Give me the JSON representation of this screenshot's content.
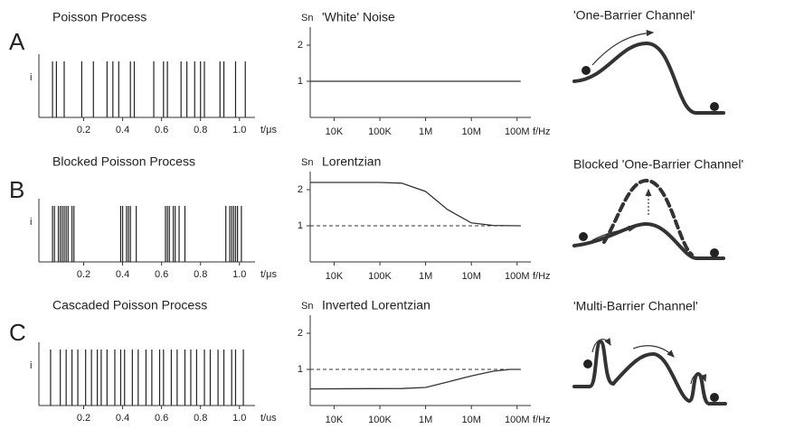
{
  "chart_data": [
    {
      "type": "event",
      "title": "Poisson Process",
      "ylabel": "i",
      "xlabel": "t/μs",
      "color": "#222",
      "x": [
        0.04,
        0.06,
        0.1,
        0.19,
        0.25,
        0.32,
        0.35,
        0.38,
        0.44,
        0.46,
        0.56,
        0.61,
        0.63,
        0.7,
        0.73,
        0.77,
        0.8,
        0.82,
        0.9,
        0.92,
        0.98,
        1.03
      ],
      "xlim": [
        -0.03,
        1.08
      ],
      "xticks": [
        0.2,
        0.4,
        0.6,
        0.8,
        {
          "value": 1,
          "label": "1.0"
        }
      ]
    },
    {
      "type": "line",
      "title": "'White' Noise",
      "ylabel": "Sn",
      "xlabel": "f/Hz",
      "log_x": true,
      "color": "#333",
      "x": [
        3000,
        120000000
      ],
      "values": [
        1,
        1
      ],
      "xlim": [
        3000,
        200000000
      ],
      "xticks": [
        {
          "value": 10000,
          "label": "10K"
        },
        {
          "value": 100000,
          "label": "100K"
        },
        {
          "value": 1000000,
          "label": "1M"
        },
        {
          "value": 10000000,
          "label": "10M"
        },
        {
          "value": 100000000,
          "label": "100M"
        }
      ],
      "ylim": [
        0,
        2.5
      ],
      "yticks": [
        1,
        2
      ]
    },
    {
      "type": "event",
      "title": "Blocked Poisson Process",
      "ylabel": "i",
      "xlabel": "t/μs",
      "color": "#222",
      "x": [
        0.04,
        0.05,
        0.07,
        0.08,
        0.09,
        0.1,
        0.11,
        0.12,
        0.14,
        0.15,
        0.39,
        0.4,
        0.42,
        0.43,
        0.44,
        0.47,
        0.62,
        0.63,
        0.64,
        0.66,
        0.67,
        0.69,
        0.72,
        0.93,
        0.95,
        0.96,
        0.97,
        0.98,
        0.99,
        1.01
      ],
      "xlim": [
        -0.03,
        1.08
      ],
      "xticks": [
        0.2,
        0.4,
        0.6,
        0.8,
        {
          "value": 1,
          "label": "1.0"
        }
      ]
    },
    {
      "type": "line",
      "title": "Lorentzian",
      "ylabel": "Sn",
      "xlabel": "f/Hz",
      "log_x": true,
      "color": "#333",
      "reference_line": 1,
      "x": [
        3000,
        100000,
        300000,
        1000000,
        3000000,
        10000000,
        30000000,
        120000000
      ],
      "values": [
        2.2,
        2.2,
        2.18,
        1.95,
        1.45,
        1.08,
        1.01,
        1
      ],
      "xlim": [
        3000,
        200000000
      ],
      "xticks": [
        {
          "value": 10000,
          "label": "10K"
        },
        {
          "value": 100000,
          "label": "100K"
        },
        {
          "value": 1000000,
          "label": "1M"
        },
        {
          "value": 10000000,
          "label": "10M"
        },
        {
          "value": 100000000,
          "label": "100M"
        }
      ],
      "ylim": [
        0,
        2.5
      ],
      "yticks": [
        1,
        2
      ]
    },
    {
      "type": "event",
      "title": "Cascaded Poisson Process",
      "ylabel": "i",
      "xlabel": "t/us",
      "color": "#222",
      "x": [
        0.03,
        0.08,
        0.11,
        0.14,
        0.17,
        0.21,
        0.24,
        0.27,
        0.29,
        0.32,
        0.36,
        0.39,
        0.41,
        0.45,
        0.48,
        0.52,
        0.55,
        0.59,
        0.61,
        0.65,
        0.68,
        0.72,
        0.75,
        0.78,
        0.82,
        0.85,
        0.89,
        0.92,
        0.96,
        0.98,
        1.02
      ],
      "xlim": [
        -0.03,
        1.08
      ],
      "xticks": [
        0.2,
        0.4,
        0.6,
        0.8,
        {
          "value": 1,
          "label": "1.0"
        }
      ]
    },
    {
      "type": "line",
      "title": "Inverted Lorentzian",
      "ylabel": "Sn",
      "xlabel": "f/Hz",
      "log_x": true,
      "color": "#333",
      "reference_line": 1,
      "x": [
        3000,
        300000,
        1000000,
        3000000,
        10000000,
        30000000,
        70000000,
        120000000
      ],
      "values": [
        0.46,
        0.47,
        0.5,
        0.65,
        0.82,
        0.95,
        1,
        1
      ],
      "xlim": [
        3000,
        200000000
      ],
      "xticks": [
        {
          "value": 10000,
          "label": "10K"
        },
        {
          "value": 100000,
          "label": "100K"
        },
        {
          "value": 1000000,
          "label": "1M"
        },
        {
          "value": 10000000,
          "label": "10M"
        },
        {
          "value": 100000000,
          "label": "100M"
        }
      ],
      "ylim": [
        0,
        2.5
      ],
      "yticks": [
        1,
        2
      ]
    }
  ],
  "rows": [
    "A",
    "B",
    "C"
  ],
  "diagrams": [
    {
      "title": "'One-Barrier Channel'"
    },
    {
      "title": "Blocked 'One-Barrier Channel'"
    },
    {
      "title": "'Multi-Barrier Channel'"
    }
  ]
}
